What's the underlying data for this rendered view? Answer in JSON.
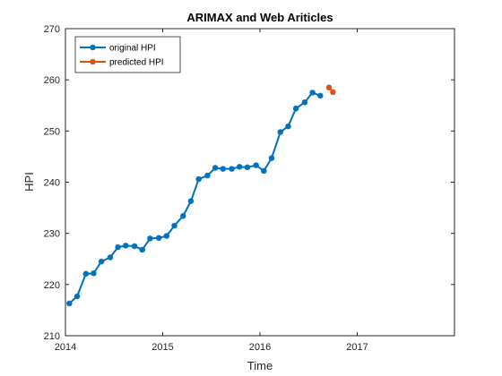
{
  "chart_data": {
    "type": "line",
    "title": "ARIMAX and Web Ariticles",
    "xlabel": "Time",
    "ylabel": "HPI",
    "xlim": [
      2014,
      2018
    ],
    "ylim": [
      210,
      270
    ],
    "xticks": [
      2014,
      2015,
      2016,
      2017
    ],
    "yticks": [
      210,
      220,
      230,
      240,
      250,
      260,
      270
    ],
    "grid": false,
    "legend_position": "top-left",
    "series": [
      {
        "name": "original HPI",
        "color": "#0072BD",
        "marker": "asterisk",
        "x": [
          2014.04,
          2014.12,
          2014.21,
          2014.29,
          2014.37,
          2014.46,
          2014.54,
          2014.62,
          2014.71,
          2014.79,
          2014.87,
          2014.96,
          2015.04,
          2015.12,
          2015.21,
          2015.29,
          2015.37,
          2015.46,
          2015.54,
          2015.62,
          2015.71,
          2015.79,
          2015.87,
          2015.96,
          2016.04,
          2016.12,
          2016.21,
          2016.29,
          2016.37,
          2016.46,
          2016.54,
          2016.62
        ],
        "y": [
          216.3,
          217.7,
          222.1,
          222.2,
          224.5,
          225.3,
          227.3,
          227.6,
          227.5,
          226.8,
          229.0,
          229.1,
          229.5,
          231.5,
          233.4,
          236.3,
          240.6,
          241.3,
          242.8,
          242.6,
          242.6,
          243.0,
          242.9,
          243.3,
          242.2,
          244.7,
          249.8,
          250.9,
          254.4,
          255.6,
          257.5,
          256.9
        ]
      },
      {
        "name": "predicted HPI",
        "color": "#D95319",
        "marker": "asterisk",
        "x": [
          2016.71,
          2016.75
        ],
        "y": [
          258.5,
          257.6
        ]
      }
    ]
  }
}
